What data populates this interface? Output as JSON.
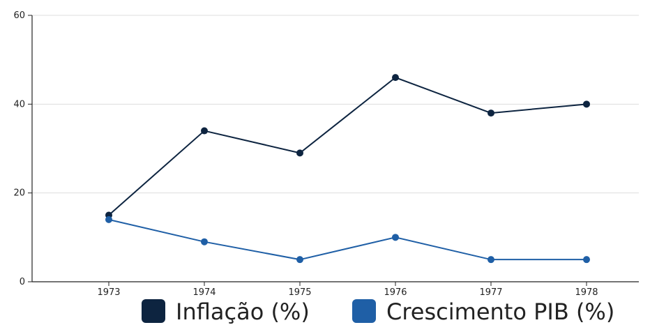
{
  "chart_data": {
    "type": "line",
    "title": "",
    "xlabel": "",
    "ylabel": "",
    "categories": [
      "1973",
      "1974",
      "1975",
      "1976",
      "1977",
      "1978"
    ],
    "ylim": [
      0,
      60
    ],
    "yticks": [
      0,
      20,
      40,
      60
    ],
    "grid": true,
    "legend_position": "bottom",
    "series": [
      {
        "name": "Inflação (%)",
        "color": "#0d2440",
        "values": [
          15,
          34,
          29,
          46,
          38,
          40
        ]
      },
      {
        "name": "Crescimento PIB (%)",
        "color": "#1f5fa6",
        "values": [
          14,
          9,
          5,
          10,
          5,
          5
        ]
      }
    ]
  }
}
